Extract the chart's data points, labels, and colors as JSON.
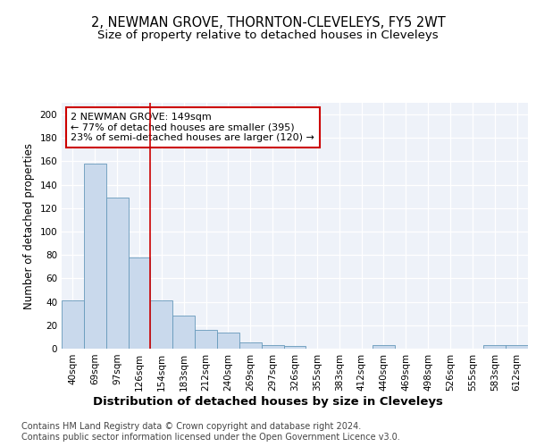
{
  "title1": "2, NEWMAN GROVE, THORNTON-CLEVELEYS, FY5 2WT",
  "title2": "Size of property relative to detached houses in Cleveleys",
  "xlabel": "Distribution of detached houses by size in Cleveleys",
  "ylabel": "Number of detached properties",
  "footnote1": "Contains HM Land Registry data © Crown copyright and database right 2024.",
  "footnote2": "Contains public sector information licensed under the Open Government Licence v3.0.",
  "annotation_line1": "2 NEWMAN GROVE: 149sqm",
  "annotation_line2": "← 77% of detached houses are smaller (395)",
  "annotation_line3": "23% of semi-detached houses are larger (120) →",
  "bar_labels": [
    "40sqm",
    "69sqm",
    "97sqm",
    "126sqm",
    "154sqm",
    "183sqm",
    "212sqm",
    "240sqm",
    "269sqm",
    "297sqm",
    "326sqm",
    "355sqm",
    "383sqm",
    "412sqm",
    "440sqm",
    "469sqm",
    "498sqm",
    "526sqm",
    "555sqm",
    "583sqm",
    "612sqm"
  ],
  "bar_values": [
    41,
    158,
    129,
    78,
    41,
    28,
    16,
    14,
    5,
    3,
    2,
    0,
    0,
    0,
    3,
    0,
    0,
    0,
    0,
    3,
    3
  ],
  "bar_color": "#c9d9ec",
  "bar_edge_color": "#6699bb",
  "vline_color": "#cc0000",
  "vline_x_idx": 4,
  "ylim": [
    0,
    210
  ],
  "yticks": [
    0,
    20,
    40,
    60,
    80,
    100,
    120,
    140,
    160,
    180,
    200
  ],
  "bg_color": "#eef2f9",
  "annotation_box_color": "#cc0000",
  "title1_fontsize": 10.5,
  "title2_fontsize": 9.5,
  "ylabel_fontsize": 8.5,
  "xlabel_fontsize": 9.5,
  "tick_fontsize": 7.5,
  "annotation_fontsize": 8,
  "footnote_fontsize": 7
}
